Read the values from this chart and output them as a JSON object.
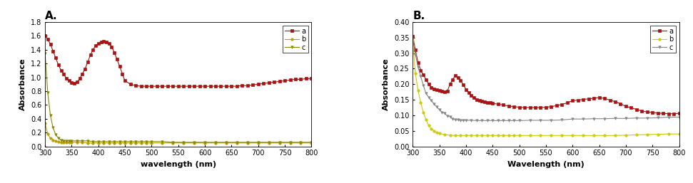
{
  "panel_A": {
    "title": "A.",
    "xlabel": "wavelength (nm)",
    "ylabel": "Absorbance",
    "xlim": [
      300,
      800
    ],
    "ylim": [
      0,
      1.8
    ],
    "yticks": [
      0.0,
      0.2,
      0.4,
      0.6,
      0.8,
      1.0,
      1.2,
      1.4,
      1.6,
      1.8
    ],
    "xticks": [
      300,
      350,
      400,
      450,
      500,
      550,
      600,
      650,
      700,
      750,
      800
    ],
    "series": [
      {
        "color": "#aa1111",
        "marker": "s",
        "label": "a",
        "x": [
          300,
          305,
          310,
          315,
          320,
          325,
          330,
          335,
          340,
          345,
          350,
          355,
          360,
          365,
          370,
          375,
          380,
          385,
          390,
          395,
          400,
          405,
          410,
          415,
          420,
          425,
          430,
          435,
          440,
          445,
          450,
          460,
          470,
          480,
          490,
          500,
          510,
          520,
          530,
          540,
          550,
          560,
          570,
          580,
          590,
          600,
          610,
          620,
          630,
          640,
          650,
          660,
          670,
          680,
          690,
          700,
          710,
          720,
          730,
          740,
          750,
          760,
          770,
          780,
          790,
          800
        ],
        "y": [
          1.6,
          1.55,
          1.48,
          1.38,
          1.28,
          1.18,
          1.1,
          1.05,
          0.98,
          0.95,
          0.92,
          0.91,
          0.93,
          0.98,
          1.05,
          1.12,
          1.22,
          1.32,
          1.4,
          1.46,
          1.49,
          1.51,
          1.52,
          1.51,
          1.49,
          1.44,
          1.36,
          1.26,
          1.16,
          1.05,
          0.95,
          0.9,
          0.88,
          0.87,
          0.87,
          0.87,
          0.87,
          0.87,
          0.87,
          0.87,
          0.87,
          0.87,
          0.87,
          0.87,
          0.87,
          0.87,
          0.87,
          0.87,
          0.87,
          0.87,
          0.87,
          0.87,
          0.88,
          0.88,
          0.89,
          0.9,
          0.91,
          0.92,
          0.93,
          0.94,
          0.95,
          0.96,
          0.97,
          0.97,
          0.98,
          0.98
        ]
      },
      {
        "color": "#b8a000",
        "marker": "o",
        "label": "b",
        "x": [
          300,
          305,
          310,
          315,
          320,
          325,
          330,
          335,
          340,
          345,
          350,
          360,
          370,
          380,
          390,
          400,
          410,
          420,
          430,
          440,
          450,
          460,
          470,
          480,
          490,
          500,
          520,
          540,
          560,
          580,
          600,
          620,
          640,
          660,
          680,
          700,
          720,
          740,
          760,
          780,
          800
        ],
        "y": [
          0.34,
          0.18,
          0.12,
          0.09,
          0.08,
          0.07,
          0.06,
          0.06,
          0.06,
          0.06,
          0.06,
          0.06,
          0.06,
          0.05,
          0.05,
          0.05,
          0.05,
          0.05,
          0.05,
          0.05,
          0.05,
          0.05,
          0.05,
          0.05,
          0.05,
          0.05,
          0.05,
          0.05,
          0.05,
          0.05,
          0.05,
          0.05,
          0.05,
          0.05,
          0.05,
          0.05,
          0.05,
          0.05,
          0.05,
          0.05,
          0.05
        ]
      },
      {
        "color": "#888800",
        "marker": "v",
        "label": "c",
        "x": [
          300,
          305,
          310,
          315,
          320,
          325,
          330,
          335,
          340,
          345,
          350,
          360,
          370,
          380,
          390,
          400,
          410,
          420,
          430,
          440,
          450,
          460,
          470,
          480,
          490,
          500,
          520,
          540,
          560,
          580,
          600,
          620,
          640,
          660,
          680,
          700,
          720,
          740,
          760,
          780,
          800
        ],
        "y": [
          1.35,
          0.78,
          0.45,
          0.27,
          0.17,
          0.12,
          0.09,
          0.08,
          0.08,
          0.08,
          0.08,
          0.08,
          0.08,
          0.08,
          0.07,
          0.07,
          0.07,
          0.07,
          0.07,
          0.07,
          0.07,
          0.07,
          0.07,
          0.07,
          0.07,
          0.07,
          0.07,
          0.06,
          0.06,
          0.06,
          0.06,
          0.06,
          0.06,
          0.06,
          0.06,
          0.06,
          0.06,
          0.06,
          0.06,
          0.06,
          0.06
        ]
      }
    ]
  },
  "panel_B": {
    "title": "B.",
    "xlabel": "Wavelength (nm)",
    "ylabel": "Absorbance",
    "xlim": [
      300,
      800
    ],
    "ylim": [
      0.0,
      0.4
    ],
    "yticks": [
      0.0,
      0.05,
      0.1,
      0.15,
      0.2,
      0.25,
      0.3,
      0.35,
      0.4
    ],
    "xticks": [
      300,
      350,
      400,
      450,
      500,
      550,
      600,
      650,
      700,
      750,
      800
    ],
    "series": [
      {
        "color": "#aa1111",
        "marker": "s",
        "label": "a",
        "x": [
          300,
          305,
          310,
          315,
          320,
          325,
          330,
          335,
          340,
          345,
          350,
          355,
          360,
          365,
          370,
          375,
          380,
          385,
          390,
          395,
          400,
          405,
          410,
          415,
          420,
          425,
          430,
          435,
          440,
          445,
          450,
          460,
          470,
          480,
          490,
          500,
          510,
          520,
          530,
          540,
          550,
          560,
          570,
          580,
          590,
          600,
          610,
          620,
          630,
          640,
          650,
          660,
          670,
          680,
          690,
          700,
          710,
          720,
          730,
          740,
          750,
          760,
          770,
          780,
          790,
          800
        ],
        "y": [
          0.355,
          0.31,
          0.27,
          0.245,
          0.23,
          0.215,
          0.2,
          0.19,
          0.185,
          0.182,
          0.18,
          0.178,
          0.175,
          0.178,
          0.2,
          0.215,
          0.228,
          0.222,
          0.212,
          0.198,
          0.183,
          0.172,
          0.163,
          0.156,
          0.151,
          0.148,
          0.146,
          0.143,
          0.141,
          0.14,
          0.138,
          0.136,
          0.133,
          0.13,
          0.128,
          0.126,
          0.125,
          0.125,
          0.125,
          0.125,
          0.126,
          0.128,
          0.131,
          0.135,
          0.14,
          0.147,
          0.149,
          0.151,
          0.153,
          0.155,
          0.157,
          0.154,
          0.149,
          0.144,
          0.137,
          0.129,
          0.124,
          0.119,
          0.114,
          0.111,
          0.109,
          0.107,
          0.106,
          0.105,
          0.105,
          0.106
        ]
      },
      {
        "color": "#cccc00",
        "marker": "o",
        "label": "b",
        "x": [
          300,
          305,
          310,
          315,
          320,
          325,
          330,
          335,
          340,
          345,
          350,
          360,
          370,
          380,
          390,
          400,
          410,
          420,
          430,
          440,
          450,
          460,
          470,
          480,
          490,
          500,
          520,
          540,
          560,
          580,
          600,
          620,
          640,
          660,
          680,
          700,
          720,
          740,
          760,
          780,
          800
        ],
        "y": [
          0.34,
          0.235,
          0.18,
          0.14,
          0.11,
          0.085,
          0.068,
          0.056,
          0.05,
          0.045,
          0.042,
          0.038,
          0.036,
          0.035,
          0.035,
          0.035,
          0.035,
          0.035,
          0.035,
          0.035,
          0.035,
          0.035,
          0.035,
          0.035,
          0.035,
          0.035,
          0.035,
          0.035,
          0.035,
          0.035,
          0.035,
          0.035,
          0.035,
          0.035,
          0.035,
          0.036,
          0.037,
          0.038,
          0.039,
          0.04,
          0.04
        ]
      },
      {
        "color": "#888888",
        "marker": "v",
        "label": "c",
        "x": [
          300,
          305,
          310,
          315,
          320,
          325,
          330,
          335,
          340,
          345,
          350,
          355,
          360,
          365,
          370,
          375,
          380,
          385,
          390,
          395,
          400,
          410,
          420,
          430,
          440,
          450,
          460,
          470,
          480,
          490,
          500,
          520,
          540,
          560,
          580,
          600,
          620,
          640,
          660,
          680,
          700,
          720,
          740,
          760,
          780,
          800
        ],
        "y": [
          0.345,
          0.295,
          0.255,
          0.225,
          0.196,
          0.17,
          0.158,
          0.147,
          0.137,
          0.127,
          0.118,
          0.11,
          0.106,
          0.098,
          0.096,
          0.088,
          0.086,
          0.085,
          0.084,
          0.084,
          0.084,
          0.084,
          0.083,
          0.083,
          0.083,
          0.083,
          0.083,
          0.083,
          0.083,
          0.083,
          0.083,
          0.084,
          0.084,
          0.084,
          0.085,
          0.088,
          0.088,
          0.089,
          0.089,
          0.09,
          0.09,
          0.091,
          0.091,
          0.092,
          0.094,
          0.094
        ]
      }
    ]
  },
  "bg_color": "#ffffff",
  "legend_fontsize": 7,
  "axis_label_fontsize": 8,
  "tick_fontsize": 7,
  "title_fontsize": 11,
  "markersize": 2.5,
  "linewidth": 0.8
}
